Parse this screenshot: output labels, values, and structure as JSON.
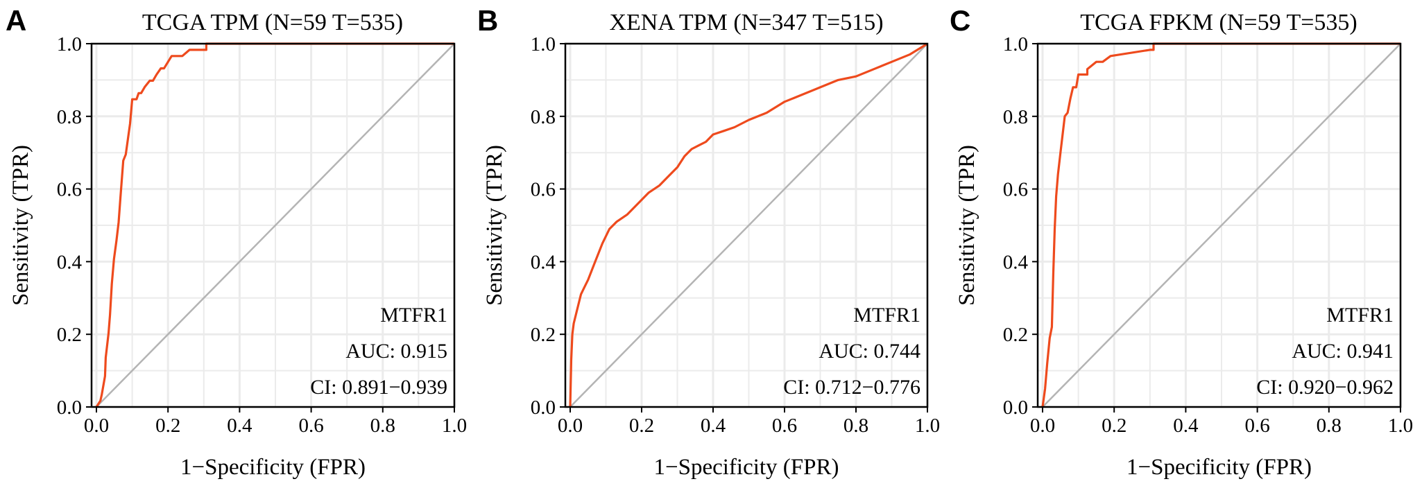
{
  "figure": {
    "panels": [
      {
        "letter": "A"
      },
      {
        "letter": "B"
      },
      {
        "letter": "C"
      }
    ]
  },
  "colors": {
    "roc_curve": "#ee4a1d",
    "diagonal": "#b4b4b4",
    "grid": "#ebebeb",
    "axes": "#000000",
    "background": "#ffffff"
  },
  "chart_data": [
    {
      "type": "line",
      "panel": "A",
      "title": "TCGA TPM (N=59 T=535)",
      "xlabel": "1−Specificity (FPR)",
      "ylabel": "Sensitivity (TPR)",
      "xlim": [
        0,
        1
      ],
      "ylim": [
        0,
        1
      ],
      "xticks": [
        "0.0",
        "0.2",
        "0.4",
        "0.6",
        "0.8",
        "1.0"
      ],
      "yticks": [
        "0.0",
        "0.2",
        "0.4",
        "0.6",
        "0.8",
        "1.0"
      ],
      "grid": true,
      "annotation": [
        "MTFR1",
        "AUC: 0.915",
        "CI: 0.891−0.939"
      ],
      "series": [
        {
          "x": [
            0.0,
            0.011,
            0.015,
            0.024,
            0.026,
            0.034,
            0.038,
            0.043,
            0.049,
            0.056,
            0.062,
            0.067,
            0.075,
            0.082,
            0.094,
            0.1,
            0.112,
            0.118,
            0.125,
            0.135,
            0.149,
            0.158,
            0.168,
            0.18,
            0.189,
            0.21,
            0.24,
            0.26,
            0.307,
            0.307,
            0.5,
            1.0
          ],
          "y": [
            0.0,
            0.017,
            0.034,
            0.085,
            0.136,
            0.203,
            0.254,
            0.339,
            0.407,
            0.458,
            0.508,
            0.576,
            0.678,
            0.695,
            0.78,
            0.847,
            0.847,
            0.864,
            0.864,
            0.881,
            0.898,
            0.898,
            0.915,
            0.932,
            0.932,
            0.966,
            0.966,
            0.983,
            0.983,
            1.0,
            1.0,
            1.0
          ]
        }
      ]
    },
    {
      "type": "line",
      "panel": "B",
      "title": "XENA TPM (N=347 T=515)",
      "xlabel": "1−Specificity (FPR)",
      "ylabel": "Sensitivity (TPR)",
      "xlim": [
        0,
        1
      ],
      "ylim": [
        0,
        1
      ],
      "xticks": [
        "0.0",
        "0.2",
        "0.4",
        "0.6",
        "0.8",
        "1.0"
      ],
      "yticks": [
        "0.0",
        "0.2",
        "0.4",
        "0.6",
        "0.8",
        "1.0"
      ],
      "grid": true,
      "annotation": [
        "MTFR1",
        "AUC: 0.744",
        "CI: 0.712−0.776"
      ],
      "series": [
        {
          "x": [
            0.0,
            0.003,
            0.006,
            0.01,
            0.015,
            0.02,
            0.03,
            0.04,
            0.05,
            0.07,
            0.09,
            0.11,
            0.13,
            0.16,
            0.18,
            0.2,
            0.22,
            0.25,
            0.28,
            0.3,
            0.32,
            0.34,
            0.36,
            0.38,
            0.4,
            0.43,
            0.46,
            0.5,
            0.55,
            0.6,
            0.65,
            0.7,
            0.75,
            0.8,
            0.85,
            0.9,
            0.95,
            1.0
          ],
          "y": [
            0.0,
            0.13,
            0.2,
            0.23,
            0.25,
            0.27,
            0.31,
            0.33,
            0.35,
            0.4,
            0.45,
            0.49,
            0.51,
            0.53,
            0.55,
            0.57,
            0.59,
            0.61,
            0.64,
            0.66,
            0.69,
            0.71,
            0.72,
            0.73,
            0.75,
            0.76,
            0.77,
            0.79,
            0.81,
            0.84,
            0.86,
            0.88,
            0.9,
            0.91,
            0.93,
            0.95,
            0.97,
            1.0
          ]
        }
      ]
    },
    {
      "type": "line",
      "panel": "C",
      "title": "TCGA FPKM (N=59 T=535)",
      "xlabel": "1−Specificity (FPR)",
      "ylabel": "Sensitivity (TPR)",
      "xlim": [
        0,
        1
      ],
      "ylim": [
        0,
        1
      ],
      "xticks": [
        "0.0",
        "0.2",
        "0.4",
        "0.6",
        "0.8",
        "1.0"
      ],
      "yticks": [
        "0.0",
        "0.2",
        "0.4",
        "0.6",
        "0.8",
        "1.0"
      ],
      "grid": true,
      "annotation": [
        "MTFR1",
        "AUC: 0.941",
        "CI: 0.920−0.962"
      ],
      "series": [
        {
          "x": [
            0.0,
            0.007,
            0.013,
            0.02,
            0.026,
            0.03,
            0.034,
            0.038,
            0.043,
            0.05,
            0.056,
            0.062,
            0.07,
            0.078,
            0.085,
            0.094,
            0.1,
            0.125,
            0.125,
            0.15,
            0.168,
            0.19,
            0.19,
            0.3,
            0.31,
            0.31,
            0.5,
            1.0
          ],
          "y": [
            0.0,
            0.05,
            0.12,
            0.19,
            0.22,
            0.37,
            0.49,
            0.58,
            0.64,
            0.7,
            0.75,
            0.8,
            0.81,
            0.85,
            0.88,
            0.88,
            0.915,
            0.915,
            0.93,
            0.95,
            0.95,
            0.966,
            0.966,
            0.983,
            0.983,
            1.0,
            1.0,
            1.0
          ]
        }
      ]
    }
  ]
}
